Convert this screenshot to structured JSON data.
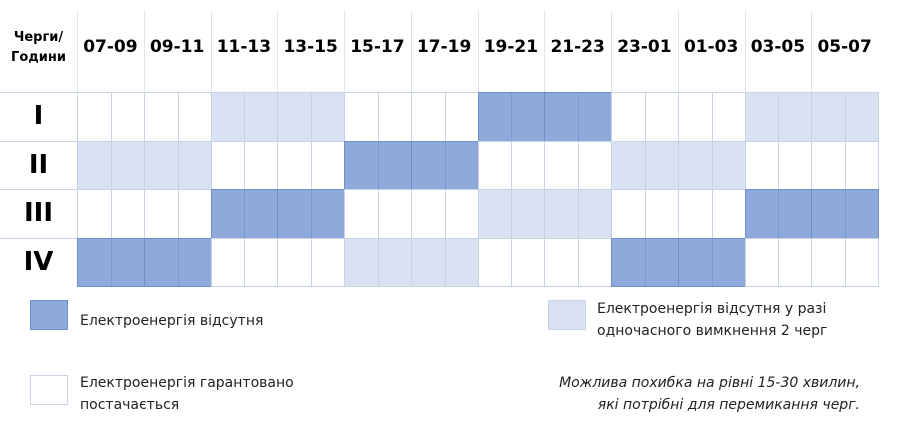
{
  "header": {
    "corner": [
      "Черги/",
      "Години"
    ],
    "slots": [
      "07-09",
      "09-11",
      "11-13",
      "13-15",
      "15-17",
      "17-19",
      "19-21",
      "21-23",
      "23-01",
      "01-03",
      "03-05",
      "05-07"
    ]
  },
  "rows": [
    {
      "label": "I",
      "cells": [
        "#ffffff",
        "#ffffff",
        "#d9e2f3",
        "#d9e2f3",
        "#ffffff",
        "#ffffff",
        "#8eaadb",
        "#8eaadb",
        "#ffffff",
        "#ffffff",
        "#d9e2f3",
        "#d9e2f3"
      ]
    },
    {
      "label": "II",
      "cells": [
        "#d9e2f3",
        "#d9e2f3",
        "#ffffff",
        "#ffffff",
        "#8eaadb",
        "#8eaadb",
        "#ffffff",
        "#ffffff",
        "#d9e2f3",
        "#d9e2f3",
        "#ffffff",
        "#ffffff"
      ]
    },
    {
      "label": "III",
      "cells": [
        "#ffffff",
        "#ffffff",
        "#8eaadb",
        "#8eaadb",
        "#ffffff",
        "#ffffff",
        "#d9e2f3",
        "#d9e2f3",
        "#ffffff",
        "#ffffff",
        "#8eaadb",
        "#8eaadb"
      ]
    },
    {
      "label": "IV",
      "cells": [
        "#8eaadb",
        "#8eaadb",
        "#ffffff",
        "#ffffff",
        "#d9e2f3",
        "#d9e2f3",
        "#ffffff",
        "#ffffff",
        "#8eaadb",
        "#8eaadb",
        "#ffffff",
        "#ffffff"
      ]
    }
  ],
  "legend": [
    {
      "color": "#8eaadb",
      "text": [
        "Електроенергія відсутня"
      ]
    },
    {
      "color": "#d9e2f3",
      "text": [
        "Електроенергія відсутня у разі",
        "одночасного вимкнення 2 черг"
      ]
    },
    {
      "color": "#ffffff",
      "text": [
        "Електроенергія гарантовано",
        "постачається"
      ]
    }
  ],
  "note": [
    "Можлива похибка на рівні 15-30 хвилин,",
    "які потрібні для перемикання черг."
  ]
}
